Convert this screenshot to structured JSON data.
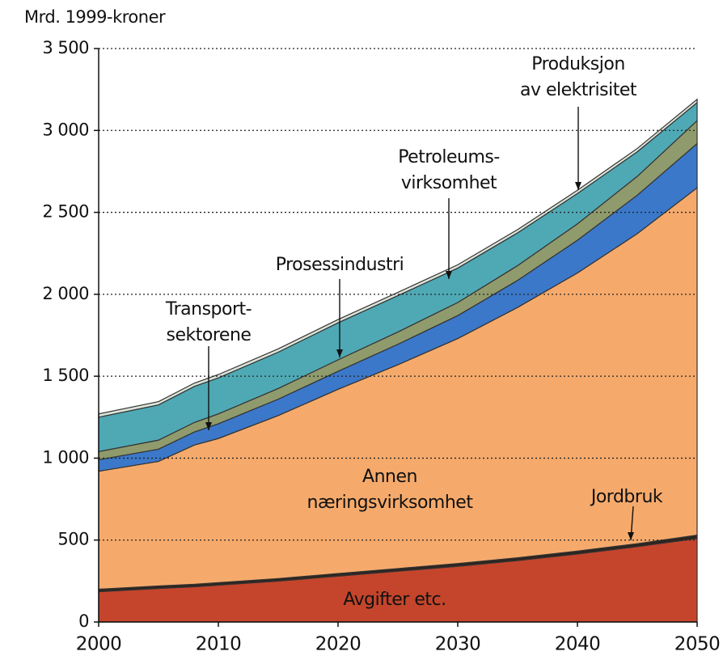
{
  "chart_data": {
    "type": "stacked_area",
    "y_label": "Mrd. 1999-kroner",
    "x": [
      2000,
      2005,
      2008,
      2010,
      2015,
      2020,
      2025,
      2030,
      2035,
      2040,
      2045,
      2050
    ],
    "xlim": [
      2000,
      2050
    ],
    "xticks": [
      2000,
      2010,
      2020,
      2030,
      2040,
      2050
    ],
    "ylim": [
      0,
      3500
    ],
    "yticks": [
      0,
      500,
      {
        "value": 1000,
        "label": "1 000"
      },
      {
        "value": 1500,
        "label": "1 500"
      },
      {
        "value": 2000,
        "label": "2 000"
      },
      {
        "value": 2500,
        "label": "2 500"
      },
      {
        "value": 3000,
        "label": "3 000"
      },
      {
        "value": 3500,
        "label": "3 500"
      }
    ],
    "grid": true,
    "series": [
      {
        "name": [
          "Avgifter etc."
        ],
        "color": "#c4452b",
        "values": [
          185,
          205,
          215,
          225,
          250,
          280,
          310,
          340,
          375,
          415,
          460,
          510
        ]
      },
      {
        "name": [
          "Jordbruk"
        ],
        "color": "#2e241e",
        "values": [
          15,
          15,
          15,
          15,
          15,
          16,
          16,
          17,
          17,
          18,
          18,
          20
        ]
      },
      {
        "name": [
          "Annen",
          "næringsvirksomhet"
        ],
        "color": "#f5aa6c",
        "values": [
          720,
          760,
          850,
          880,
          995,
          1124,
          1244,
          1373,
          1528,
          1697,
          1892,
          2120
        ]
      },
      {
        "name": [
          "Transport-",
          "sektorene"
        ],
        "color": "#3b78c9",
        "values": [
          70,
          75,
          80,
          90,
          100,
          110,
          125,
          140,
          165,
          200,
          235,
          270
        ]
      },
      {
        "name": [
          "Prosessindustri"
        ],
        "color": "#8f9b6c",
        "values": [
          50,
          55,
          58,
          60,
          65,
          70,
          75,
          80,
          90,
          100,
          115,
          140
        ]
      },
      {
        "name": [
          "Petroleums-",
          "virksomhet"
        ],
        "color": "#4fa9b5",
        "values": [
          210,
          215,
          220,
          220,
          222,
          226,
          222,
          210,
          200,
          185,
          150,
          110
        ]
      },
      {
        "name": [
          "Produksjon",
          "av elektrisitet"
        ],
        "color": "#dbe4d8",
        "values": [
          20,
          20,
          20,
          20,
          20,
          20,
          20,
          20,
          20,
          20,
          20,
          20
        ]
      }
    ]
  }
}
